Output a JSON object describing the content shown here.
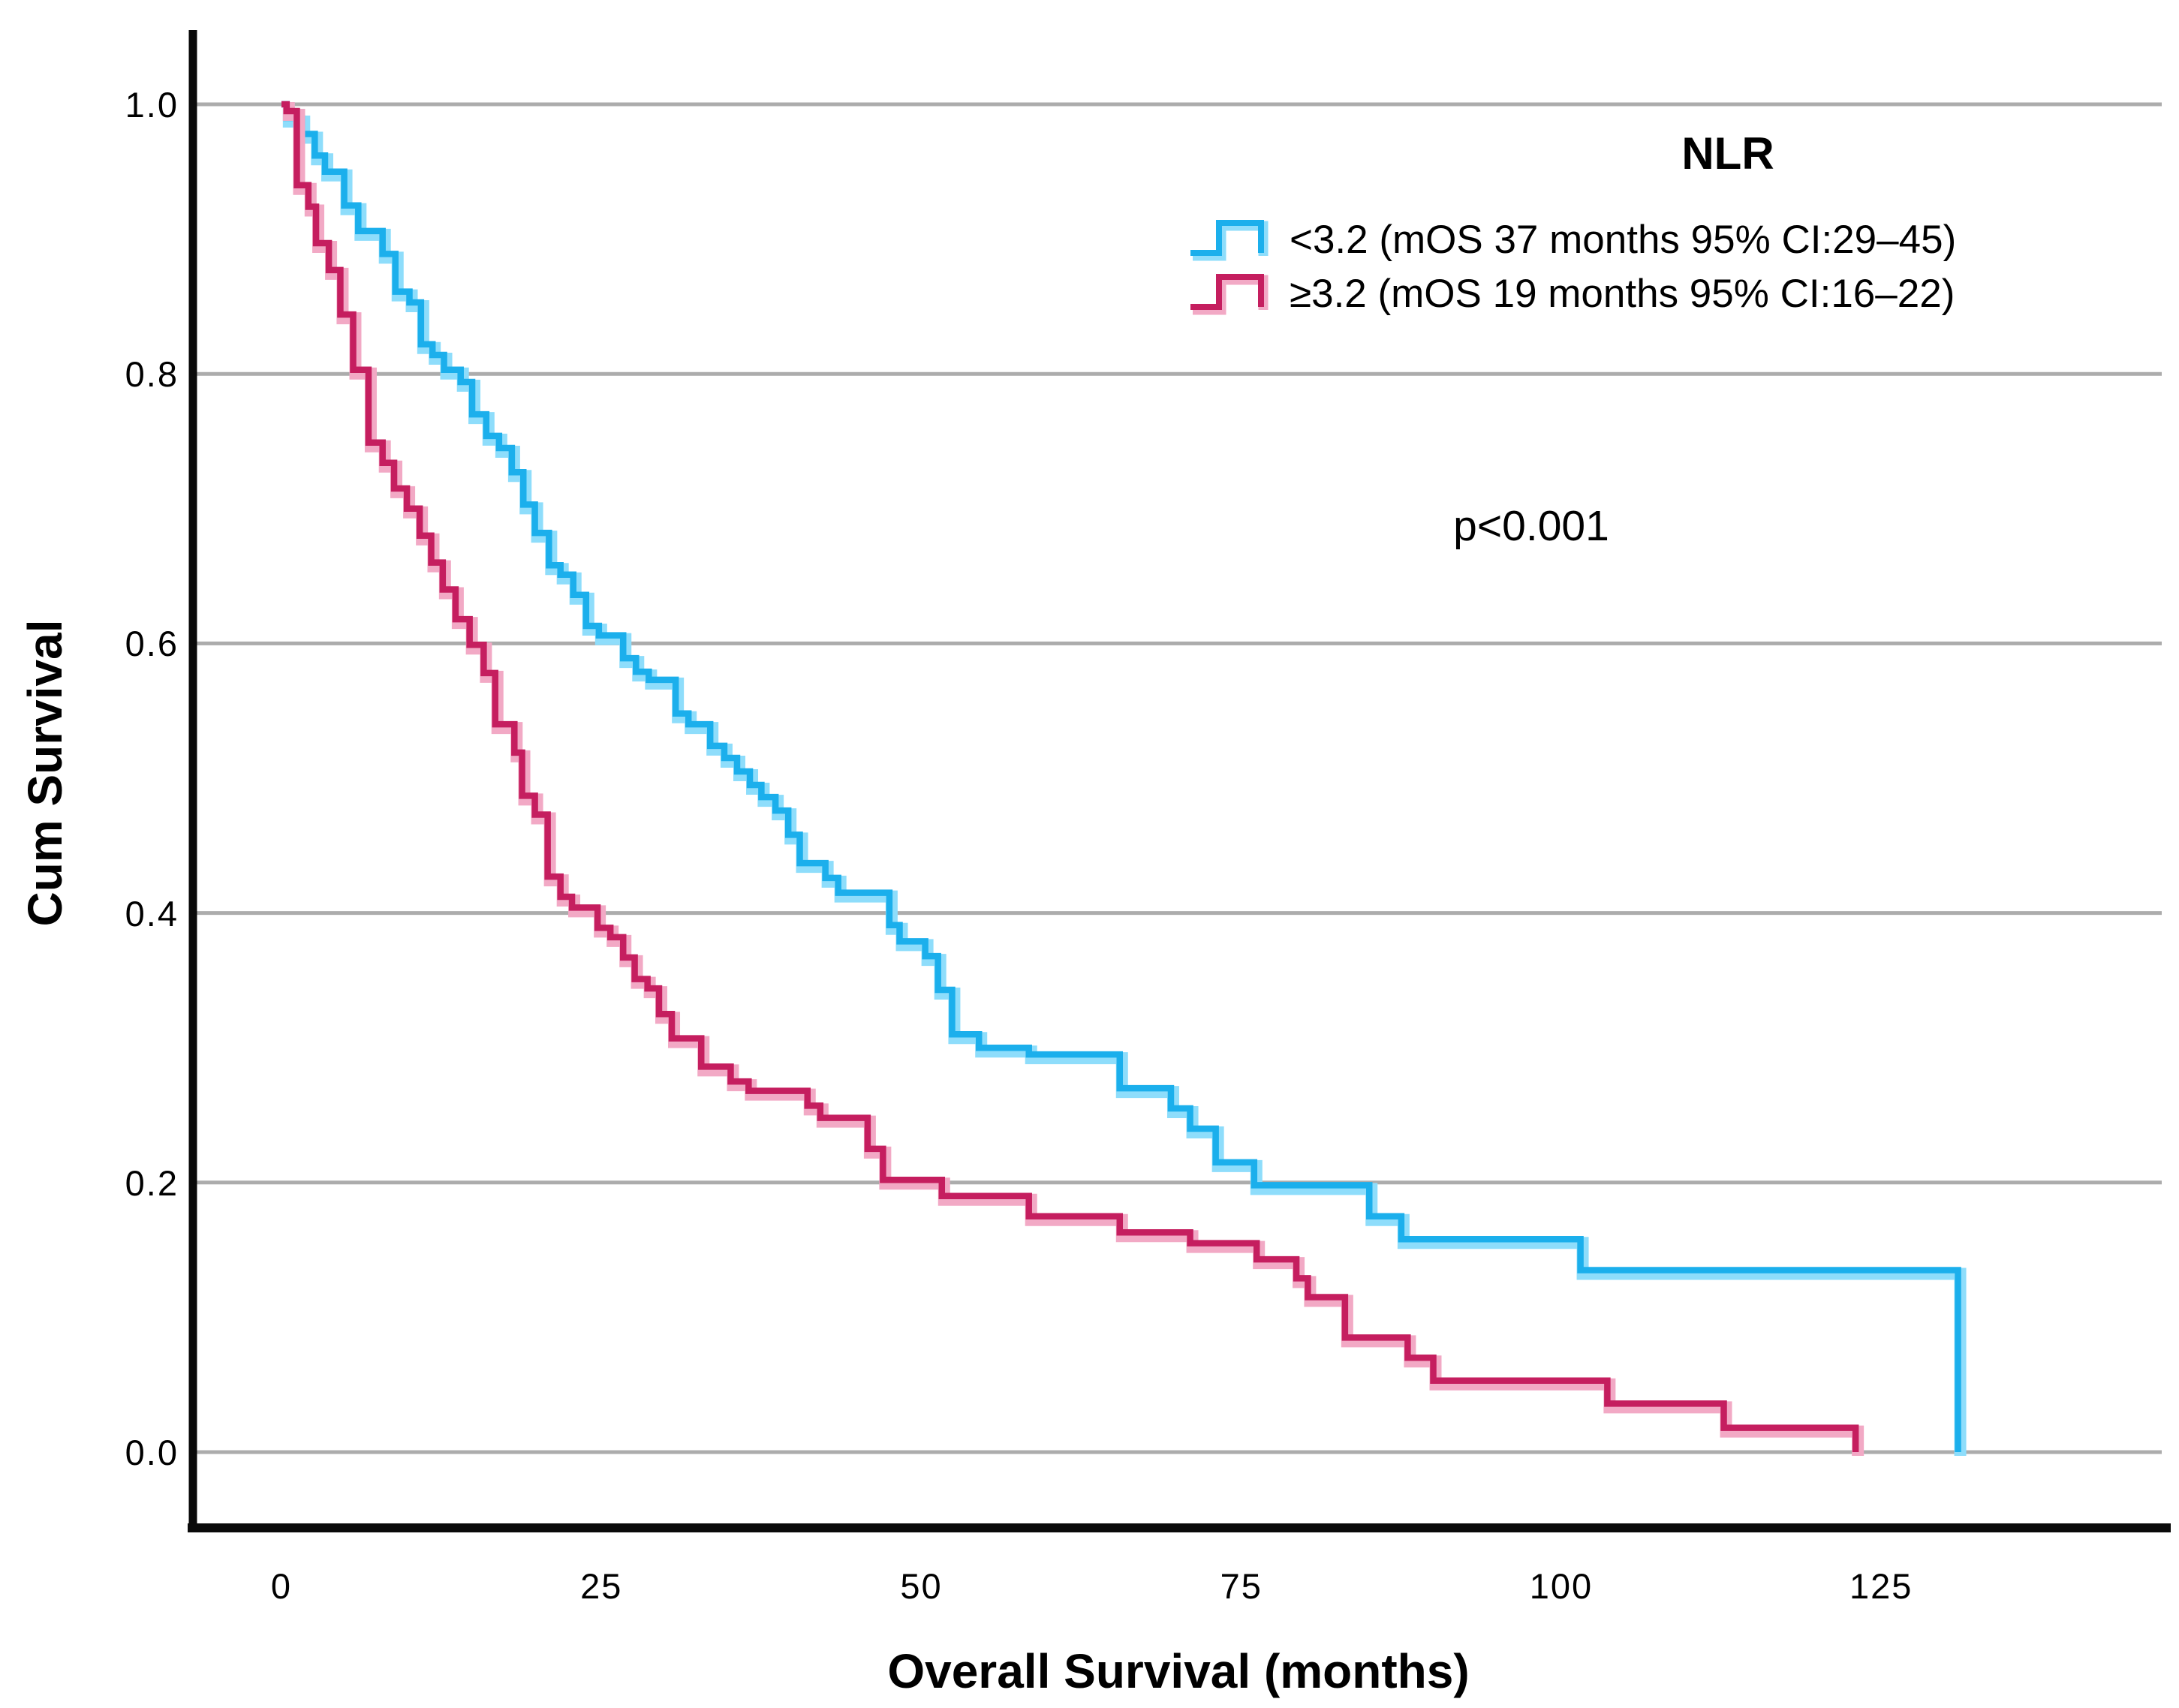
{
  "chart_data": {
    "type": "line",
    "subtype": "kaplan-meier-step-plot",
    "title": "",
    "legend_title": "NLR",
    "legend_position": "top-right-inside",
    "annotation": "p<0.001",
    "xlabel": "Overall Survival (months)",
    "ylabel": "Cum Survival",
    "xlim": [
      0,
      135
    ],
    "ylim": [
      0.0,
      1.0
    ],
    "grid": "horizontal-only",
    "x_tick_values": [
      0,
      25,
      50,
      75,
      100,
      125
    ],
    "x_tick_labels": [
      "0",
      "25",
      "50",
      "75",
      "100",
      "125"
    ],
    "y_tick_values": [
      0.0,
      0.2,
      0.4,
      0.6,
      0.8,
      1.0
    ],
    "y_tick_labels": [
      "0.0",
      "0.2",
      "0.4",
      "0.6",
      "0.8",
      "1.0"
    ],
    "colors": {
      "grid": "#ACACAC",
      "axis": "#0a0a0a",
      "text": "#000000"
    },
    "series": [
      {
        "name": "NLR_lt_3.2",
        "label": "<3.2 (mOS 37 months 95% CI:29–45)",
        "median_os_months": 37,
        "ci95": "29–45",
        "color": "#1BAFEC",
        "halo_color": "#8EDDFB",
        "x": [
          0,
          0.4,
          1.6,
          2.6,
          3.4,
          4.9,
          6,
          7.9,
          8.9,
          10,
          10.9,
          11.8,
          12.7,
          14,
          14.9,
          16,
          17,
          18,
          18.9,
          19.8,
          20.9,
          21.8,
          22.8,
          23.8,
          24.8,
          26.7,
          27.7,
          28.7,
          30.8,
          31.8,
          33.5,
          34.6,
          35.6,
          36.6,
          37.5,
          38.6,
          39.6,
          40.5,
          42.5,
          43.5,
          47.5,
          48.3,
          50.3,
          51.3,
          52.4,
          54.5,
          58.4,
          65.5,
          69.5,
          71,
          73,
          76,
          85,
          87.5,
          101.5,
          131
        ],
        "y": [
          1,
          0.99,
          0.978,
          0.962,
          0.95,
          0.925,
          0.906,
          0.889,
          0.861,
          0.853,
          0.822,
          0.814,
          0.803,
          0.794,
          0.77,
          0.754,
          0.745,
          0.727,
          0.703,
          0.682,
          0.658,
          0.651,
          0.636,
          0.613,
          0.606,
          0.589,
          0.579,
          0.573,
          0.548,
          0.54,
          0.524,
          0.515,
          0.505,
          0.495,
          0.486,
          0.476,
          0.458,
          0.437,
          0.426,
          0.415,
          0.391,
          0.379,
          0.368,
          0.343,
          0.31,
          0.3,
          0.295,
          0.27,
          0.255,
          0.24,
          0.215,
          0.198,
          0.175,
          0.158,
          0.135,
          0
        ]
      },
      {
        "name": "NLR_ge_3.2",
        "label": "≥3.2 (mOS 19 months 95% CI:16–22)",
        "median_os_months": 19,
        "ci95": "16–22",
        "color": "#C51E5F",
        "halo_color": "#F2A9C5",
        "x": [
          0,
          0.4,
          1.2,
          2.1,
          2.7,
          3.7,
          4.6,
          5.6,
          6.8,
          7.9,
          8.8,
          9.8,
          10.8,
          11.7,
          12.6,
          13.6,
          14.7,
          15.8,
          16.7,
          18.2,
          18.8,
          19.8,
          20.8,
          21.8,
          22.7,
          24.7,
          25.7,
          26.7,
          27.6,
          28.6,
          29.5,
          30.5,
          32.8,
          35.1,
          36.5,
          41.1,
          42.1,
          45.8,
          47,
          51.6,
          58.4,
          65.5,
          71,
          76.2,
          79.3,
          80.2,
          83.1,
          88,
          90,
          103.6,
          112.7,
          123
        ],
        "y": [
          1,
          0.995,
          0.94,
          0.924,
          0.897,
          0.877,
          0.844,
          0.803,
          0.749,
          0.734,
          0.715,
          0.7,
          0.68,
          0.66,
          0.64,
          0.618,
          0.599,
          0.578,
          0.54,
          0.519,
          0.487,
          0.473,
          0.427,
          0.412,
          0.404,
          0.389,
          0.382,
          0.367,
          0.351,
          0.344,
          0.325,
          0.307,
          0.286,
          0.275,
          0.268,
          0.257,
          0.248,
          0.225,
          0.202,
          0.19,
          0.175,
          0.163,
          0.155,
          0.143,
          0.129,
          0.115,
          0.085,
          0.07,
          0.053,
          0.036,
          0.018,
          0
        ]
      }
    ]
  }
}
